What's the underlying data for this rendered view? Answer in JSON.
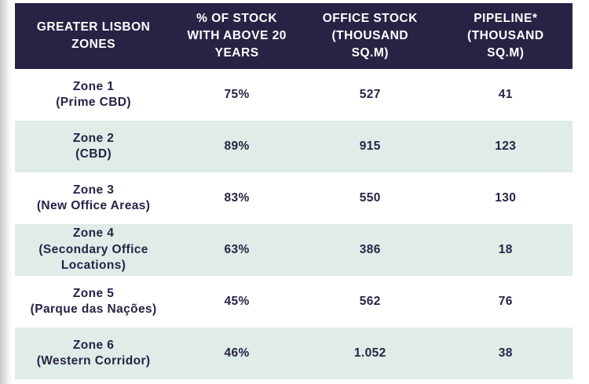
{
  "colors": {
    "header_bg": "#272345",
    "row_alt_bg": "#dfece7",
    "text_navy": "#272345",
    "page_bg": "#ffffff"
  },
  "table": {
    "columns": [
      {
        "label": "GREATER LISBON\nZONES"
      },
      {
        "label": "% OF STOCK\nWITH ABOVE 20\nYEARS"
      },
      {
        "label": "OFFICE STOCK\n(THOUSAND\nSQ.M)"
      },
      {
        "label": "PIPELINE*\n(THOUSAND\nSQ.M)"
      }
    ],
    "rows": [
      {
        "zone_name": "Zone 1",
        "zone_desc": "(Prime CBD)",
        "pct_above_20y": "75%",
        "office_stock": "527",
        "pipeline": "41"
      },
      {
        "zone_name": "Zone 2",
        "zone_desc": "(CBD)",
        "pct_above_20y": "89%",
        "office_stock": "915",
        "pipeline": "123"
      },
      {
        "zone_name": "Zone 3",
        "zone_desc": "(New Office Areas)",
        "pct_above_20y": "83%",
        "office_stock": "550",
        "pipeline": "130"
      },
      {
        "zone_name": "Zone 4",
        "zone_desc": "(Secondary Office\nLocations)",
        "pct_above_20y": "63%",
        "office_stock": "386",
        "pipeline": "18"
      },
      {
        "zone_name": "Zone 5",
        "zone_desc": "(Parque das Nações)",
        "pct_above_20y": "45%",
        "office_stock": "562",
        "pipeline": "76"
      },
      {
        "zone_name": "Zone 6",
        "zone_desc": "(Western Corridor)",
        "pct_above_20y": "46%",
        "office_stock": "1.052",
        "pipeline": "38"
      }
    ]
  },
  "chart_data": {
    "type": "table",
    "title": "",
    "columns": [
      "GREATER LISBON ZONES",
      "% OF STOCK WITH ABOVE 20 YEARS",
      "OFFICE STOCK (THOUSAND SQ.M)",
      "PIPELINE* (THOUSAND SQ.M)"
    ],
    "rows": [
      [
        "Zone 1 (Prime CBD)",
        "75%",
        527,
        41
      ],
      [
        "Zone 2 (CBD)",
        "89%",
        915,
        123
      ],
      [
        "Zone 3 (New Office Areas)",
        "83%",
        550,
        130
      ],
      [
        "Zone 4 (Secondary Office Locations)",
        "63%",
        386,
        18
      ],
      [
        "Zone 5 (Parque das Nações)",
        "45%",
        562,
        76
      ],
      [
        "Zone 6 (Western Corridor)",
        "46%",
        1052,
        38
      ]
    ],
    "notes": "Pipeline column header carries an asterisk; values in thousand sq.m; 1.052 uses Portuguese thousands separator (=1052)"
  }
}
